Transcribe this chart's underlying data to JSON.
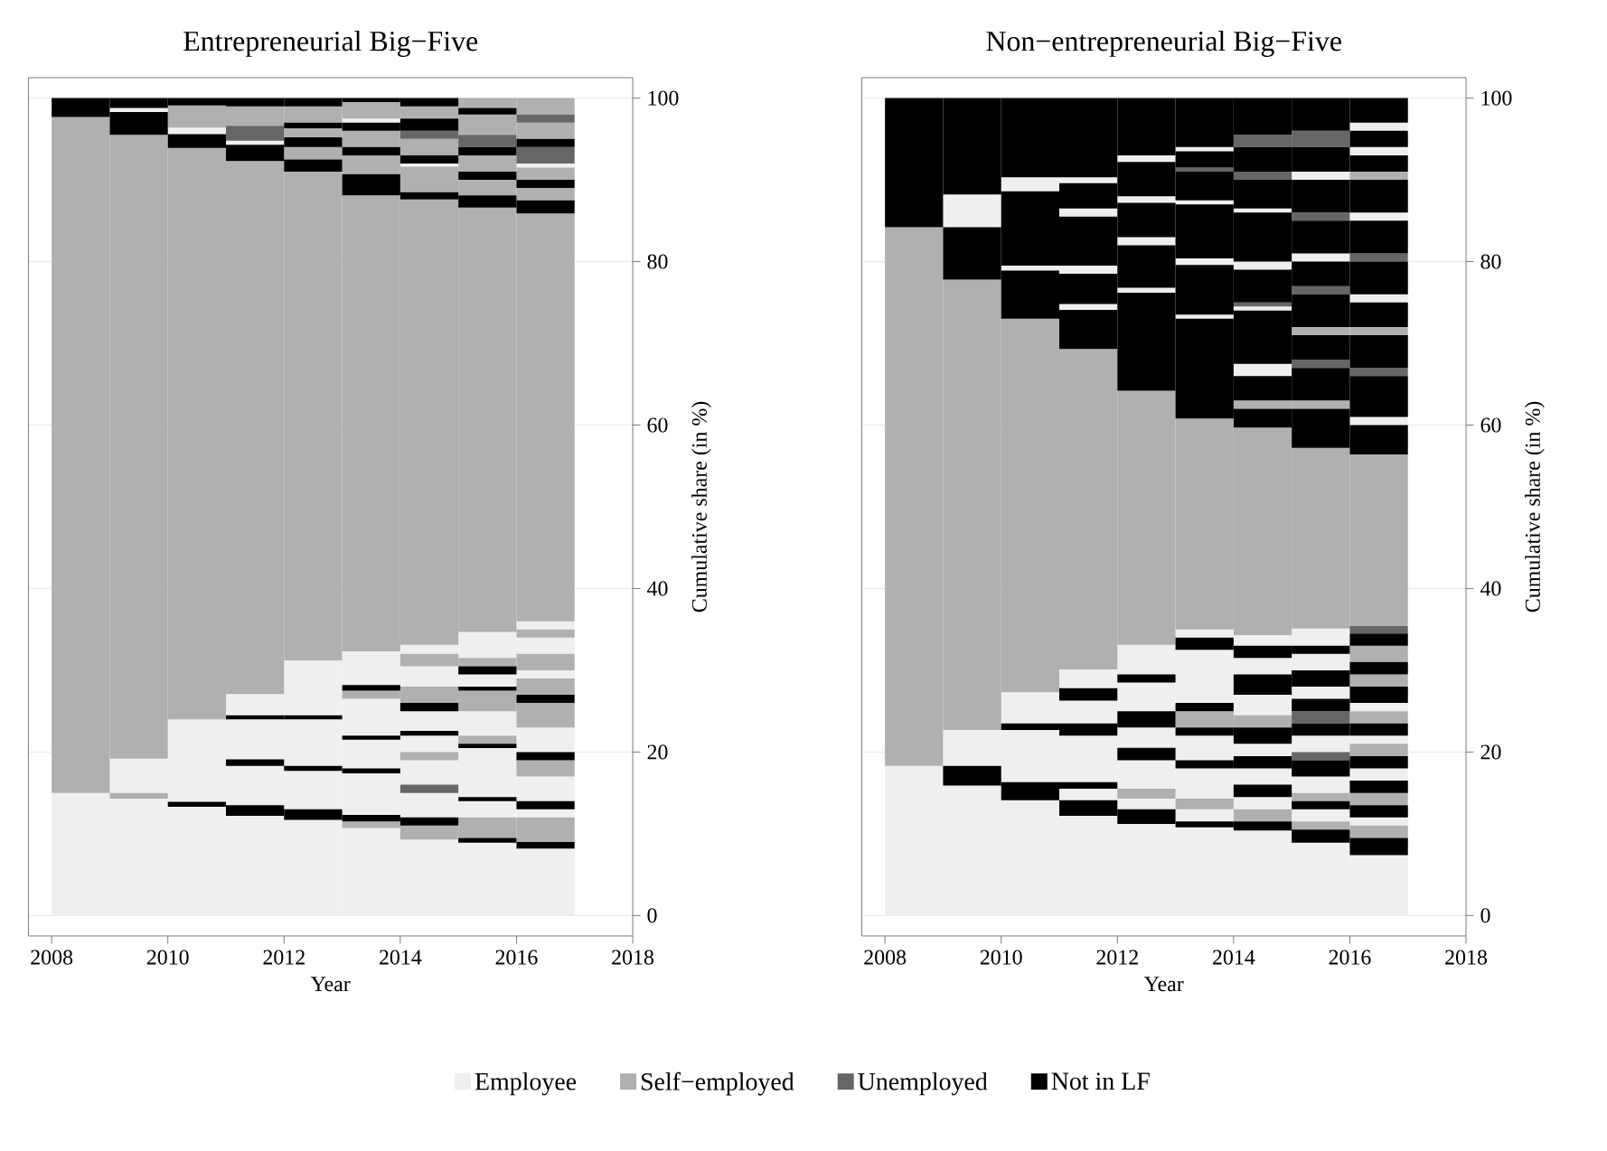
{
  "chart_data": [
    {
      "type": "bar",
      "title": "Entrepreneurial Big−Five",
      "xlabel": "Year",
      "ylabel": "Cumulative share (in %)",
      "xlim": [
        2007.6,
        2018
      ],
      "xticks": [
        2008,
        2010,
        2012,
        2014,
        2016,
        2018
      ],
      "ylim": [
        -2.5,
        102.5
      ],
      "yticks": [
        0,
        20,
        40,
        60,
        80,
        100
      ],
      "grid": "y",
      "legend": "bottom",
      "series": [
        {
          "name": "Employee",
          "color": "#efefef",
          "x": [
            2008.5,
            2009.5,
            2010.5,
            2011.5,
            2012.5,
            2013.5,
            2014.5,
            2015.5,
            2016.5
          ],
          "base": [
            0,
            0,
            0,
            0,
            0,
            0,
            0,
            0,
            0
          ],
          "values": [
            15,
            14.3,
            13.3,
            12.2,
            11.7,
            10.7,
            9.3,
            8.9,
            8.2
          ]
        },
        {
          "color": "#efefef",
          "x": [
            2009.5,
            2010.5,
            2011.5,
            2012.5,
            2013.5,
            2014.5,
            2015.5,
            2016.5
          ],
          "base": [
            15,
            13.9,
            13.5,
            13,
            12.3,
            12,
            12,
            12
          ],
          "values": [
            4.2,
            10.1,
            4.8,
            4.7,
            5.1,
            3,
            2,
            1
          ]
        },
        {
          "color": "#efefef",
          "x": [
            2009.5,
            2010.5,
            2011.5,
            2012.5,
            2013.5,
            2014.5,
            2015.5,
            2016.5
          ],
          "base": [
            98.3,
            95.6,
            19.1,
            18.3,
            18,
            16,
            14.5,
            14
          ],
          "values": [
            0.5,
            0.8,
            4.9,
            5.7,
            3.5,
            3,
            6,
            3
          ]
        },
        {
          "color": "#efefef",
          "x": [
            2011.5,
            2012.5,
            2013.5,
            2014.5,
            2015.5,
            2016.5
          ],
          "base": [
            24.5,
            24.5,
            22,
            20,
            22,
            20
          ],
          "values": [
            2.6,
            6.7,
            4.5,
            2,
            3,
            3
          ]
        },
        {
          "color": "#efefef",
          "x": [
            2011.5,
            2013.5,
            2014.5,
            2015.5,
            2016.5
          ],
          "base": [
            94.3,
            28.2,
            22.6,
            28,
            29
          ],
          "values": [
            0.5,
            4.1,
            2.4,
            1.5,
            1
          ]
        },
        {
          "color": "#efefef",
          "x": [
            2013.5,
            2014.5,
            2015.5,
            2016.5
          ],
          "base": [
            97,
            28,
            31.5,
            32
          ],
          "values": [
            0.5,
            2.5,
            3.2,
            2
          ]
        },
        {
          "color": "#efefef",
          "x": [
            2014.5,
            2016.5
          ],
          "base": [
            32,
            35
          ],
          "values": [
            1.1,
            1
          ]
        },
        {
          "color": "#efefef",
          "x": [
            2014.5,
            2016.5
          ],
          "base": [
            91.6,
            91.5
          ],
          "values": [
            0.4,
            0.5
          ]
        },
        {
          "name": "Self−employed",
          "color": "#b0b0b0",
          "x": [
            2008.5,
            2009.5,
            2010.5,
            2011.5,
            2012.5,
            2013.5,
            2014.5,
            2015.5,
            2016.5
          ],
          "base": [
            15,
            19.2,
            24,
            27.1,
            31.2,
            32.3,
            33.1,
            34.7,
            36
          ],
          "values": [
            82.7,
            76.3,
            69.9,
            65.2,
            59.8,
            55.8,
            54.5,
            51.9,
            49.9
          ]
        },
        {
          "color": "#b0b0b0",
          "x": [
            2009.5,
            2010.5,
            2011.5,
            2012.5,
            2013.5,
            2014.5,
            2015.5,
            2016.5
          ],
          "base": [
            14.3,
            96.4,
            96.6,
            92.5,
            10.7,
            9.3,
            9.5,
            9
          ],
          "values": [
            0.7,
            2.7,
            2.4,
            1.5,
            0.8,
            1.7,
            2.5,
            3
          ]
        },
        {
          "color": "#b0b0b0",
          "x": [
            2012.5,
            2013.5,
            2014.5,
            2015.5,
            2016.5
          ],
          "base": [
            95.2,
            26.5,
            19,
            21,
            17
          ],
          "values": [
            1.1,
            1,
            1,
            1,
            2
          ]
        },
        {
          "color": "#b0b0b0",
          "x": [
            2012.5,
            2013.5,
            2014.5,
            2015.5,
            2016.5
          ],
          "base": [
            97,
            90.7,
            26,
            25,
            23
          ],
          "values": [
            2,
            2.3,
            2,
            2.5,
            3
          ]
        },
        {
          "color": "#b0b0b0",
          "x": [
            2013.5,
            2014.5,
            2015.5,
            2016.5
          ],
          "base": [
            94,
            30.5,
            30.5,
            27
          ],
          "values": [
            2,
            1.5,
            1,
            2
          ]
        },
        {
          "color": "#b0b0b0",
          "x": [
            2013.5,
            2014.5,
            2015.5,
            2016.5
          ],
          "base": [
            97.5,
            88.5,
            88.1,
            30
          ],
          "values": [
            2,
            3.1,
            1.9,
            2
          ]
        },
        {
          "color": "#b0b0b0",
          "x": [
            2014.5,
            2015.5,
            2016.5
          ],
          "base": [
            93,
            91,
            34
          ],
          "values": [
            2,
            2,
            1
          ]
        },
        {
          "color": "#b0b0b0",
          "x": [
            2014.5,
            2015.5,
            2016.5
          ],
          "base": [
            97.5,
            95.5,
            87.5
          ],
          "values": [
            1.5,
            2.5,
            1.5
          ]
        },
        {
          "color": "#b0b0b0",
          "x": [
            2015.5,
            2016.5
          ],
          "base": [
            98.8,
            90
          ],
          "values": [
            1.2,
            1.5
          ]
        },
        {
          "color": "#b0b0b0",
          "x": [
            2016.5
          ],
          "base": [
            95
          ],
          "values": [
            2
          ]
        },
        {
          "color": "#b0b0b0",
          "x": [
            2016.5
          ],
          "base": [
            98
          ],
          "values": [
            2
          ]
        },
        {
          "name": "Unemployed",
          "color": "#666666",
          "x": [
            2011.5,
            2014.5,
            2015.5,
            2016.5
          ],
          "base": [
            94.8,
            15,
            94,
            92
          ],
          "values": [
            1.8,
            1,
            1.5,
            2
          ]
        },
        {
          "color": "#666666",
          "x": [
            2014.5,
            2016.5
          ],
          "base": [
            95,
            97
          ],
          "values": [
            1,
            1
          ]
        },
        {
          "name": "Not in LF",
          "color": "#000000",
          "x": [
            2008.5,
            2009.5,
            2010.5,
            2011.5,
            2012.5,
            2013.5,
            2014.5,
            2015.5,
            2016.5
          ],
          "base": [
            97.7,
            95.5,
            13.3,
            12.2,
            11.7,
            11.5,
            11,
            8.9,
            8.2
          ],
          "values": [
            2.3,
            2.8,
            0.6,
            1.3,
            1.3,
            0.8,
            1,
            0.6,
            0.8
          ]
        },
        {
          "color": "#000000",
          "x": [
            2009.5,
            2010.5,
            2011.5,
            2012.5,
            2013.5,
            2014.5,
            2015.5,
            2016.5
          ],
          "base": [
            98.8,
            93.9,
            18.3,
            17.7,
            17.4,
            22,
            14,
            13
          ],
          "values": [
            1.2,
            1.7,
            0.8,
            0.6,
            0.6,
            0.6,
            0.5,
            1
          ]
        },
        {
          "color": "#000000",
          "x": [
            2010.5,
            2011.5,
            2012.5,
            2013.5,
            2014.5,
            2015.5,
            2016.5
          ],
          "base": [
            99.1,
            24,
            24,
            21.5,
            25,
            20.5,
            19
          ],
          "values": [
            0.9,
            0.5,
            0.5,
            0.5,
            1,
            0.5,
            1
          ]
        },
        {
          "color": "#000000",
          "x": [
            2011.5,
            2012.5,
            2013.5,
            2014.5,
            2015.5,
            2016.5
          ],
          "base": [
            92.3,
            91,
            27.5,
            87.6,
            27.5,
            26
          ],
          "values": [
            2,
            1.5,
            0.7,
            0.9,
            0.5,
            1
          ]
        },
        {
          "color": "#000000",
          "x": [
            2011.5,
            2012.5,
            2013.5,
            2014.5,
            2015.5,
            2016.5
          ],
          "base": [
            99,
            94,
            88.1,
            92,
            29.5,
            85.9
          ],
          "values": [
            1,
            1.2,
            2.6,
            1,
            1,
            1.6
          ]
        },
        {
          "color": "#000000",
          "x": [
            2012.5,
            2013.5,
            2014.5,
            2015.5,
            2016.5
          ],
          "base": [
            96.3,
            93,
            96,
            86.6,
            89
          ],
          "values": [
            0.7,
            1,
            1.5,
            1.5,
            1
          ]
        },
        {
          "color": "#000000",
          "x": [
            2012.5,
            2013.5,
            2014.5,
            2015.5,
            2016.5
          ],
          "base": [
            99,
            96,
            99,
            90,
            94
          ],
          "values": [
            1,
            1,
            1,
            1,
            1
          ]
        },
        {
          "color": "#000000",
          "x": [
            2013.5,
            2015.5
          ],
          "base": [
            99.5,
            93
          ],
          "values": [
            0.5,
            1
          ]
        },
        {
          "color": "#000000",
          "x": [
            2015.5
          ],
          "base": [
            98
          ],
          "values": [
            0.8
          ]
        }
      ]
    },
    {
      "type": "bar",
      "title": "Non−entrepreneurial Big−Five",
      "xlabel": "Year",
      "ylabel": "Cumulative share (in %)",
      "xlim": [
        2007.6,
        2018
      ],
      "xticks": [
        2008,
        2010,
        2012,
        2014,
        2016,
        2018
      ],
      "ylim": [
        -2.5,
        102.5
      ],
      "yticks": [
        0,
        20,
        40,
        60,
        80,
        100
      ],
      "grid": "y",
      "series": [
        {
          "color": "#efefef",
          "x": [
            2008.5,
            2009.5,
            2010.5,
            2011.5,
            2012.5,
            2013.5,
            2014.5,
            2015.5,
            2016.5
          ],
          "base": [
            0,
            0,
            0,
            0,
            0,
            0,
            0,
            0,
            0
          ],
          "values": [
            18.3,
            15.9,
            14.1,
            12.2,
            11.2,
            10.8,
            10.4,
            8.9,
            7.4
          ]
        },
        {
          "color": "#efefef",
          "x": [
            2009.5,
            2010.5,
            2011.5,
            2012.5,
            2013.5,
            2014.5,
            2015.5,
            2016.5
          ],
          "base": [
            18.3,
            16.3,
            14.1,
            13,
            11.5,
            13,
            11.5,
            11
          ],
          "values": [
            4.4,
            6.4,
            1.4,
            1.3,
            1.5,
            1.5,
            1.5,
            1
          ]
        },
        {
          "color": "#efefef",
          "x": [
            2009.5,
            2010.5,
            2011.5,
            2012.5,
            2013.5,
            2014.5,
            2015.5,
            2016.5
          ],
          "base": [
            84.2,
            23.5,
            16.3,
            15.5,
            14.3,
            16,
            15,
            16.5
          ],
          "values": [
            4,
            3.8,
            5.7,
            3.5,
            3.7,
            2,
            2,
            1.5
          ]
        },
        {
          "color": "#efefef",
          "x": [
            2010.5,
            2011.5,
            2012.5,
            2013.5,
            2014.5,
            2015.5,
            2016.5
          ],
          "base": [
            78.9,
            23.5,
            20.5,
            19,
            19.5,
            20,
            21
          ],
          "values": [
            0.6,
            2.8,
            2.5,
            3,
            1.5,
            2,
            1
          ]
        },
        {
          "color": "#efefef",
          "x": [
            2010.5,
            2011.5,
            2012.5,
            2013.5,
            2014.5,
            2015.5,
            2016.5
          ],
          "base": [
            88.6,
            27.8,
            25,
            26,
            24.5,
            26.5,
            25
          ],
          "values": [
            1.7,
            2.3,
            3.5,
            6.5,
            2.5,
            1.5,
            1
          ]
        },
        {
          "color": "#efefef",
          "x": [
            2011.5,
            2012.5,
            2013.5,
            2014.5,
            2015.5,
            2016.5
          ],
          "base": [
            74.1,
            29.5,
            34,
            29.5,
            30,
            60
          ],
          "values": [
            0.7,
            3.6,
            1,
            2,
            2,
            1
          ]
        },
        {
          "color": "#efefef",
          "x": [
            2011.5,
            2012.5,
            2013.5,
            2014.5,
            2015.5,
            2016.5
          ],
          "base": [
            78.5,
            76.2,
            73,
            33,
            33,
            75
          ],
          "values": [
            1,
            0.6,
            0.5,
            1.3,
            2.1,
            1
          ]
        },
        {
          "color": "#efefef",
          "x": [
            2011.5,
            2012.5,
            2013.5,
            2014.5,
            2015.5,
            2016.5
          ],
          "base": [
            85.5,
            82,
            79.6,
            66,
            80,
            85
          ],
          "values": [
            1,
            1,
            0.8,
            1.5,
            1,
            1
          ]
        },
        {
          "color": "#efefef",
          "x": [
            2011.5,
            2012.5,
            2013.5,
            2014.5,
            2015.5,
            2016.5
          ],
          "base": [
            89.6,
            87.2,
            87,
            74,
            90,
            93
          ],
          "values": [
            0.7,
            0.8,
            0.5,
            0.5,
            1,
            1
          ]
        },
        {
          "color": "#efefef",
          "x": [
            2012.5,
            2013.5,
            2014.5,
            2016.5
          ],
          "base": [
            92.2,
            93.5,
            79,
            96
          ],
          "values": [
            0.8,
            0.5,
            1,
            1
          ]
        },
        {
          "color": "#efefef",
          "x": [
            2014.5
          ],
          "base": [
            86
          ],
          "values": [
            0.5
          ]
        },
        {
          "color": "#b0b0b0",
          "x": [
            2008.5,
            2009.5,
            2010.5,
            2011.5,
            2012.5,
            2013.5,
            2014.5,
            2015.5,
            2016.5
          ],
          "base": [
            18.3,
            22.7,
            27.3,
            30.1,
            33.1,
            35,
            34.3,
            35.1,
            35.4
          ],
          "values": [
            65.9,
            55.1,
            45.7,
            39.2,
            31.1,
            25.8,
            25.4,
            22.1,
            21
          ]
        },
        {
          "color": "#b0b0b0",
          "x": [
            2012.5,
            2013.5,
            2014.5,
            2015.5,
            2016.5
          ],
          "base": [
            14.3,
            13,
            11.5,
            10.5,
            9.5
          ],
          "values": [
            1.2,
            1.3,
            1.5,
            1,
            1.5
          ]
        },
        {
          "color": "#b0b0b0",
          "x": [
            2013.5,
            2014.5,
            2015.5,
            2016.5
          ],
          "base": [
            23,
            23,
            14,
            13.5
          ],
          "values": [
            2,
            1.5,
            1,
            1.5
          ]
        },
        {
          "color": "#b0b0b0",
          "x": [
            2014.5,
            2015.5,
            2016.5
          ],
          "base": [
            62,
            62,
            19.5
          ],
          "values": [
            1,
            1,
            1.5
          ]
        },
        {
          "color": "#b0b0b0",
          "x": [
            2015.5,
            2016.5
          ],
          "base": [
            71,
            23.5
          ],
          "values": [
            1,
            1.5
          ]
        },
        {
          "color": "#b0b0b0",
          "x": [
            2016.5
          ],
          "base": [
            28
          ],
          "values": [
            1.5
          ]
        },
        {
          "color": "#b0b0b0",
          "x": [
            2016.5
          ],
          "base": [
            31
          ],
          "values": [
            2
          ]
        },
        {
          "color": "#b0b0b0",
          "x": [
            2016.5
          ],
          "base": [
            71
          ],
          "values": [
            1
          ]
        },
        {
          "color": "#b0b0b0",
          "x": [
            2016.5
          ],
          "base": [
            90
          ],
          "values": [
            1
          ]
        },
        {
          "color": "#666666",
          "x": [
            2013.5,
            2014.5,
            2015.5,
            2016.5
          ],
          "base": [
            91,
            74.5,
            19,
            34.5
          ],
          "values": [
            0.5,
            0.5,
            1,
            0.9
          ]
        },
        {
          "color": "#666666",
          "x": [
            2014.5,
            2015.5,
            2016.5
          ],
          "base": [
            90,
            23.5,
            66
          ],
          "values": [
            1,
            1.5,
            1
          ]
        },
        {
          "color": "#666666",
          "x": [
            2014.5,
            2015.5,
            2016.5
          ],
          "base": [
            94,
            67,
            80
          ],
          "values": [
            1.5,
            1,
            1
          ]
        },
        {
          "color": "#666666",
          "x": [
            2015.5
          ],
          "base": [
            76
          ],
          "values": [
            1
          ]
        },
        {
          "color": "#666666",
          "x": [
            2015.5
          ],
          "base": [
            85
          ],
          "values": [
            1
          ]
        },
        {
          "color": "#666666",
          "x": [
            2015.5
          ],
          "base": [
            94
          ],
          "values": [
            2
          ]
        },
        {
          "color": "#000000",
          "x": [
            2008.5,
            2009.5,
            2010.5,
            2011.5,
            2012.5,
            2013.5,
            2014.5,
            2015.5,
            2016.5
          ],
          "base": [
            84.2,
            15.9,
            14.1,
            12.2,
            11.2,
            10.8,
            10.4,
            8.9,
            7.4
          ],
          "values": [
            15.8,
            2.4,
            2.2,
            1.9,
            1.8,
            0.7,
            1.1,
            1.6,
            2.1
          ]
        },
        {
          "color": "#000000",
          "x": [
            2009.5,
            2010.5,
            2011.5,
            2012.5,
            2013.5,
            2014.5,
            2015.5,
            2016.5
          ],
          "base": [
            77.8,
            22.7,
            15.5,
            19,
            18,
            14.5,
            13,
            12
          ],
          "values": [
            6.4,
            0.8,
            0.8,
            1.5,
            1,
            1.5,
            1,
            1.5
          ]
        },
        {
          "color": "#000000",
          "x": [
            2009.5,
            2010.5,
            2011.5,
            2012.5,
            2013.5,
            2014.5,
            2015.5,
            2016.5
          ],
          "base": [
            88.2,
            73,
            22,
            23,
            22,
            18,
            17,
            15
          ],
          "values": [
            11.8,
            5.9,
            1.5,
            2,
            1,
            1.5,
            2,
            1.5
          ]
        },
        {
          "color": "#000000",
          "x": [
            2010.5,
            2011.5,
            2012.5,
            2013.5,
            2014.5,
            2015.5,
            2016.5
          ],
          "base": [
            79.5,
            26.3,
            28.5,
            25,
            21,
            22,
            18
          ],
          "values": [
            9.1,
            1.5,
            1,
            1,
            2,
            1.5,
            1.5
          ]
        },
        {
          "color": "#000000",
          "x": [
            2010.5,
            2011.5,
            2012.5,
            2013.5,
            2014.5,
            2015.5,
            2016.5
          ],
          "base": [
            90.3,
            69.3,
            64.2,
            32.5,
            27,
            25,
            22
          ],
          "values": [
            9.7,
            4.8,
            12,
            1.5,
            2.5,
            1.5,
            1.5
          ]
        },
        {
          "color": "#000000",
          "x": [
            2011.5,
            2012.5,
            2013.5,
            2014.5,
            2015.5,
            2016.5
          ],
          "base": [
            74.8,
            76.8,
            60.8,
            31.5,
            28,
            26
          ],
          "values": [
            3.7,
            5.2,
            12.2,
            1.5,
            2,
            2
          ]
        },
        {
          "color": "#000000",
          "x": [
            2011.5,
            2012.5,
            2013.5,
            2014.5,
            2015.5,
            2016.5
          ],
          "base": [
            79.5,
            83,
            73.5,
            59.7,
            32,
            29.5
          ],
          "values": [
            6,
            4.2,
            6.1,
            2.3,
            1,
            1.5
          ]
        },
        {
          "color": "#000000",
          "x": [
            2011.5,
            2012.5,
            2013.5,
            2014.5,
            2015.5,
            2016.5
          ],
          "base": [
            86.5,
            88,
            80.4,
            63,
            57.2,
            33
          ],
          "values": [
            3.1,
            4.2,
            6.6,
            3,
            4.8,
            1.5
          ]
        },
        {
          "color": "#000000",
          "x": [
            2011.5,
            2012.5,
            2013.5,
            2014.5,
            2015.5,
            2016.5
          ],
          "base": [
            90.3,
            93,
            87.5,
            67.5,
            63,
            56.4
          ],
          "values": [
            9.7,
            7,
            3.5,
            6.5,
            4,
            3.6
          ]
        },
        {
          "color": "#000000",
          "x": [
            2013.5,
            2014.5,
            2015.5,
            2016.5
          ],
          "base": [
            91.5,
            75,
            68,
            61
          ],
          "values": [
            2,
            4,
            3,
            5
          ]
        },
        {
          "color": "#000000",
          "x": [
            2013.5,
            2014.5,
            2015.5,
            2016.5
          ],
          "base": [
            94,
            80,
            72,
            67
          ],
          "values": [
            6,
            6,
            4,
            4
          ]
        },
        {
          "color": "#000000",
          "x": [
            2014.5,
            2015.5,
            2016.5
          ],
          "base": [
            86.5,
            77,
            72
          ],
          "values": [
            3.5,
            3,
            3
          ]
        },
        {
          "color": "#000000",
          "x": [
            2014.5,
            2015.5,
            2016.5
          ],
          "base": [
            91,
            81,
            76
          ],
          "values": [
            3,
            4,
            4
          ]
        },
        {
          "color": "#000000",
          "x": [
            2014.5,
            2015.5,
            2016.5
          ],
          "base": [
            95.5,
            86,
            81
          ],
          "values": [
            4.5,
            4,
            4
          ]
        },
        {
          "color": "#000000",
          "x": [
            2015.5,
            2016.5
          ],
          "base": [
            91,
            86
          ],
          "values": [
            3,
            4
          ]
        },
        {
          "color": "#000000",
          "x": [
            2015.5,
            2016.5
          ],
          "base": [
            96,
            91
          ],
          "values": [
            4,
            2
          ]
        },
        {
          "color": "#000000",
          "x": [
            2016.5
          ],
          "base": [
            94
          ],
          "values": [
            2
          ]
        },
        {
          "color": "#000000",
          "x": [
            2016.5
          ],
          "base": [
            97
          ],
          "values": [
            3
          ]
        }
      ]
    }
  ]
}
